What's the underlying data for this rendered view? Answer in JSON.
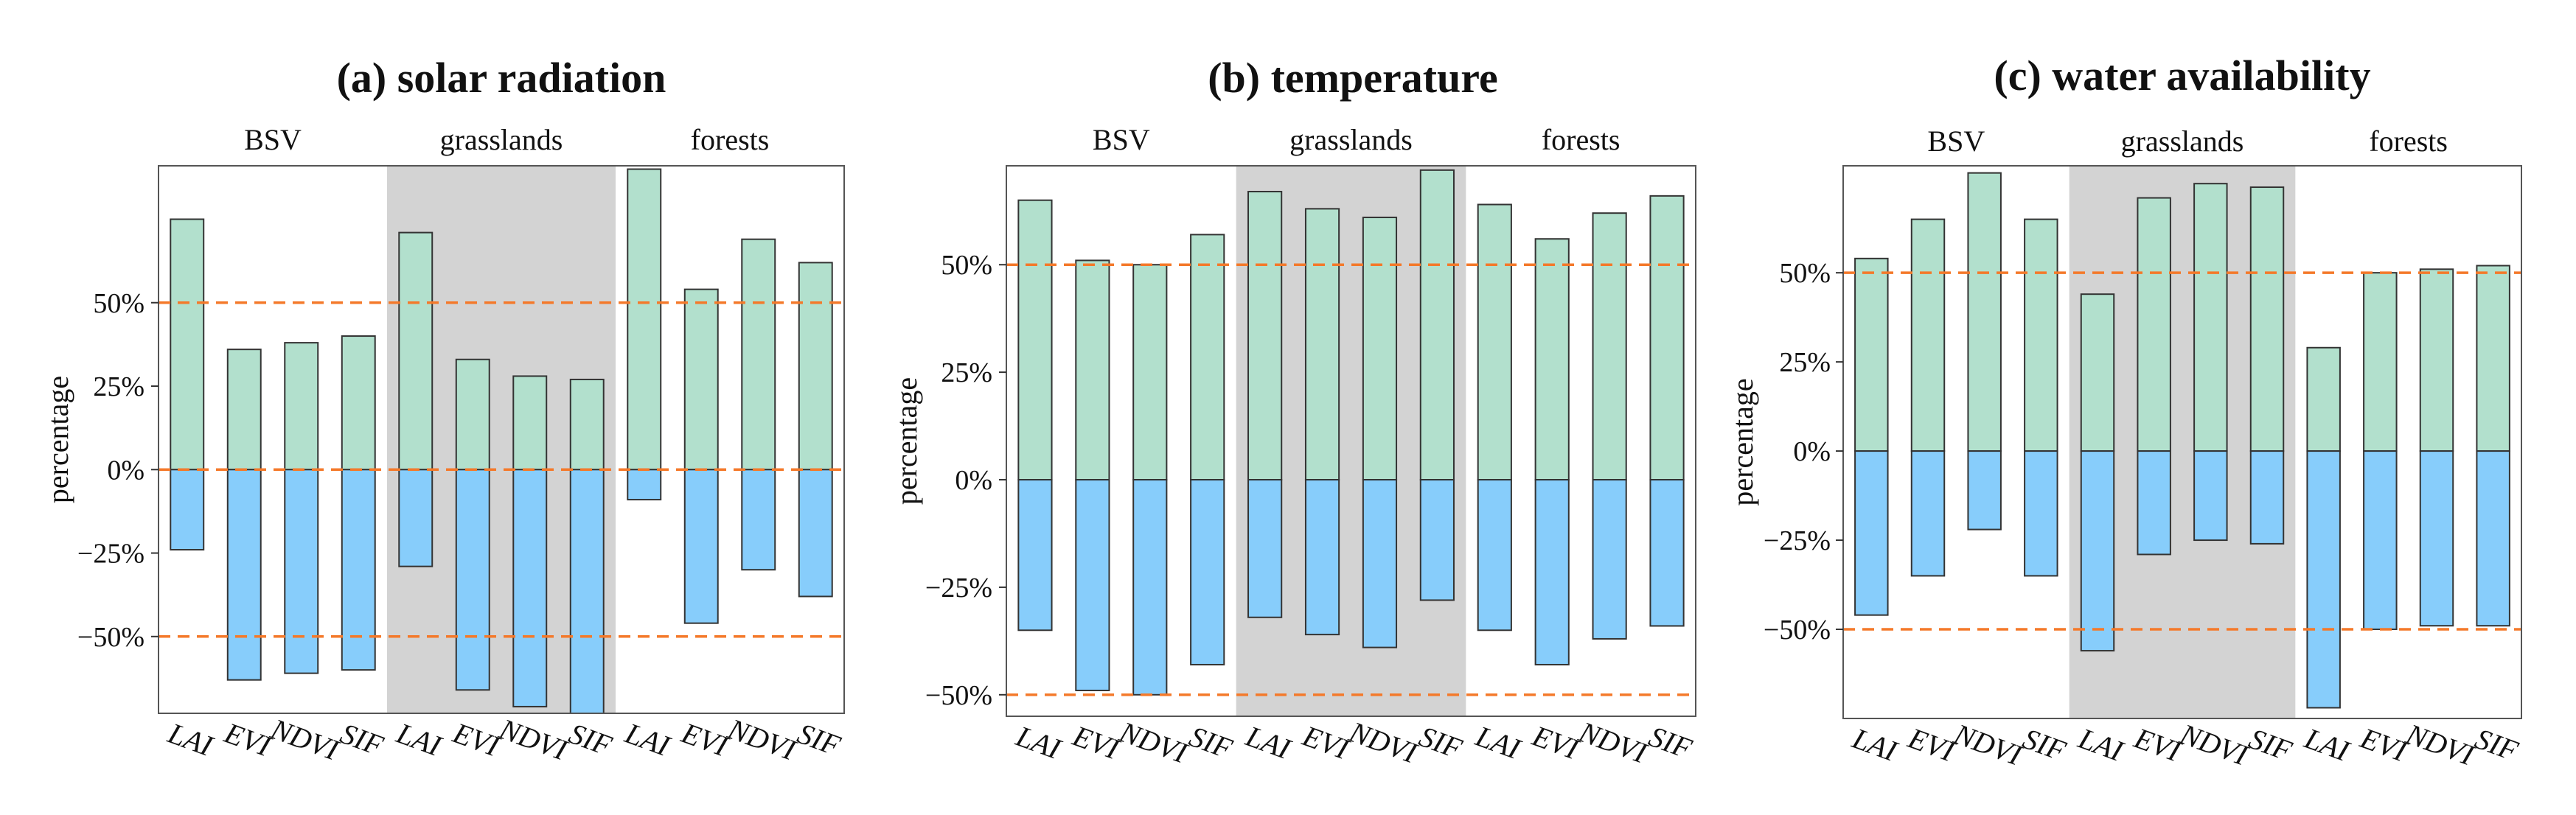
{
  "chart_data": [
    {
      "type": "bar",
      "title": "(a) solar radiation",
      "ylabel": "percentage",
      "ylim": [
        -73,
        91
      ],
      "yticks": [
        {
          "v": 50,
          "label": "50%"
        },
        {
          "v": 25,
          "label": "25%"
        },
        {
          "v": 0,
          "label": "0%"
        },
        {
          "v": -25,
          "label": "−25%"
        },
        {
          "v": -50,
          "label": "−50%"
        }
      ],
      "reference_lines": [
        50,
        0,
        -50
      ],
      "groups": [
        "BSV",
        "grasslands",
        "forests"
      ],
      "shaded_group": 1,
      "categories": [
        "LAI",
        "EVI",
        "NDVI",
        "SIF",
        "LAI",
        "EVI",
        "NDVI",
        "SIF",
        "LAI",
        "EVI",
        "NDVI",
        "SIF"
      ],
      "series": [
        {
          "name": "positive",
          "values": [
            75,
            36,
            38,
            40,
            71,
            33,
            28,
            27,
            90,
            54,
            69,
            62
          ]
        },
        {
          "name": "negative",
          "values": [
            -24,
            -63,
            -61,
            -60,
            -29,
            -66,
            -71,
            -73,
            -9,
            -46,
            -30,
            -38
          ]
        }
      ]
    },
    {
      "type": "bar",
      "title": "(b) temperature",
      "ylabel": "percentage",
      "ylim": [
        -55,
        73
      ],
      "yticks": [
        {
          "v": 50,
          "label": "50%"
        },
        {
          "v": 25,
          "label": "25%"
        },
        {
          "v": 0,
          "label": "0%"
        },
        {
          "v": -25,
          "label": "−25%"
        },
        {
          "v": -50,
          "label": "−50%"
        }
      ],
      "reference_lines": [
        50,
        -50
      ],
      "groups": [
        "BSV",
        "grasslands",
        "forests"
      ],
      "shaded_group": 1,
      "categories": [
        "LAI",
        "EVI",
        "NDVI",
        "SIF",
        "LAI",
        "EVI",
        "NDVI",
        "SIF",
        "LAI",
        "EVI",
        "NDVI",
        "SIF"
      ],
      "series": [
        {
          "name": "positive",
          "values": [
            65,
            51,
            50,
            57,
            67,
            63,
            61,
            72,
            64,
            56,
            62,
            66
          ]
        },
        {
          "name": "negative",
          "values": [
            -35,
            -49,
            -50,
            -43,
            -32,
            -36,
            -39,
            -28,
            -35,
            -43,
            -37,
            -34
          ]
        }
      ]
    },
    {
      "type": "bar",
      "title": "(c) water availability",
      "ylabel": "percentage",
      "ylim": [
        -75,
        80
      ],
      "yticks": [
        {
          "v": 50,
          "label": "50%"
        },
        {
          "v": 25,
          "label": "25%"
        },
        {
          "v": 0,
          "label": "0%"
        },
        {
          "v": -25,
          "label": "−25%"
        },
        {
          "v": -50,
          "label": "−50%"
        }
      ],
      "reference_lines": [
        50,
        -50
      ],
      "groups": [
        "BSV",
        "grasslands",
        "forests"
      ],
      "shaded_group": 1,
      "categories": [
        "LAI",
        "EVI",
        "NDVI",
        "SIF",
        "LAI",
        "EVI",
        "NDVI",
        "SIF",
        "LAI",
        "EVI",
        "NDVI",
        "SIF"
      ],
      "series": [
        {
          "name": "positive",
          "values": [
            54,
            65,
            78,
            65,
            44,
            71,
            75,
            74,
            29,
            50,
            51,
            52
          ]
        },
        {
          "name": "negative",
          "values": [
            -46,
            -35,
            -22,
            -35,
            -56,
            -29,
            -25,
            -26,
            -72,
            -50,
            -49,
            -49
          ]
        }
      ]
    }
  ],
  "colors": {
    "positive": "#b2e0cd",
    "negative": "#87cdfb",
    "shade": "#d3d3d3",
    "reference": "#f4792a",
    "outline": "#333333"
  }
}
